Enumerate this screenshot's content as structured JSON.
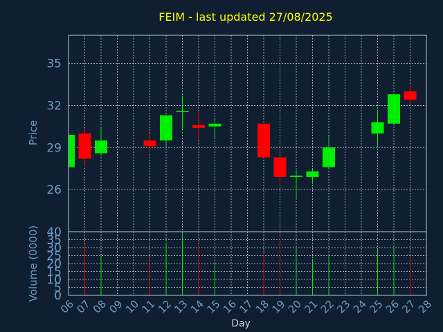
{
  "chart_data": {
    "type": "candlestick",
    "title": "FEIM - last updated 27/08/2025",
    "xlabel": "Day",
    "ylabel": "Price",
    "volume_ylabel": "Volume (0000)",
    "grid": true,
    "colors": {
      "background": "#0f1e30",
      "title": "#ffff00",
      "axis": "#b8c8d8",
      "label": "#6f9cc4",
      "grid": "#c8d0d8",
      "up": "#00ee00",
      "down": "#ff0000"
    },
    "x_ticks": [
      "06",
      "07",
      "08",
      "09",
      "10",
      "11",
      "12",
      "13",
      "14",
      "15",
      "16",
      "17",
      "18",
      "19",
      "20",
      "21",
      "22",
      "23",
      "24",
      "25",
      "26",
      "27",
      "28"
    ],
    "price_ylim": [
      23,
      37
    ],
    "price_ticks": [
      "26",
      "29",
      "32",
      "35"
    ],
    "volume_ylim": [
      0,
      40
    ],
    "volume_ticks": [
      "0",
      "5",
      "10",
      "15",
      "20",
      "25",
      "30",
      "35",
      "40"
    ],
    "candles": [
      {
        "day": 6,
        "open": 27.6,
        "high": 30.3,
        "low": 27.6,
        "close": 29.9,
        "volume": 0
      },
      {
        "day": 7,
        "open": 30.0,
        "high": 30.4,
        "low": 27.6,
        "close": 28.2,
        "volume": 32
      },
      {
        "day": 8,
        "open": 28.6,
        "high": 30.5,
        "low": 28.5,
        "close": 29.5,
        "volume": 25
      },
      {
        "day": 11,
        "open": 29.5,
        "high": 30.0,
        "low": 28.6,
        "close": 29.1,
        "volume": 22
      },
      {
        "day": 12,
        "open": 29.5,
        "high": 31.3,
        "low": 29.0,
        "close": 31.3,
        "volume": 33
      },
      {
        "day": 13,
        "open": 31.6,
        "high": 32.7,
        "low": 30.2,
        "close": 31.6,
        "volume": 39
      },
      {
        "day": 14,
        "open": 30.6,
        "high": 31.5,
        "low": 29.5,
        "close": 30.4,
        "volume": 31
      },
      {
        "day": 15,
        "open": 30.5,
        "high": 31.0,
        "low": 29.7,
        "close": 30.7,
        "volume": 20
      },
      {
        "day": 18,
        "open": 30.7,
        "high": 30.7,
        "low": 28.3,
        "close": 28.3,
        "volume": 27
      },
      {
        "day": 19,
        "open": 28.3,
        "high": 28.3,
        "low": 26.4,
        "close": 26.9,
        "volume": 37
      },
      {
        "day": 20,
        "open": 26.9,
        "high": 27.4,
        "low": 25.4,
        "close": 27.0,
        "volume": 29
      },
      {
        "day": 21,
        "open": 26.9,
        "high": 27.5,
        "low": 26.4,
        "close": 27.3,
        "volume": 23
      },
      {
        "day": 22,
        "open": 27.6,
        "high": 29.8,
        "low": 27.5,
        "close": 29.0,
        "volume": 25
      },
      {
        "day": 25,
        "open": 30.0,
        "high": 31.7,
        "low": 29.0,
        "close": 30.8,
        "volume": 29
      },
      {
        "day": 26,
        "open": 30.7,
        "high": 32.8,
        "low": 30.7,
        "close": 32.8,
        "volume": 29
      },
      {
        "day": 27,
        "open": 33.0,
        "high": 33.5,
        "low": 32.1,
        "close": 32.4,
        "volume": 24
      }
    ]
  }
}
